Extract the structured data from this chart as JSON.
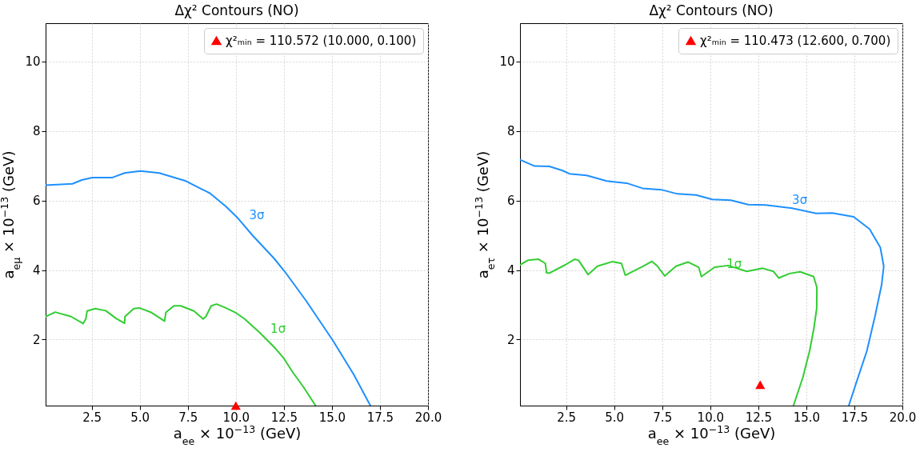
{
  "chart_data": [
    {
      "type": "line",
      "title": "Δχ² Contours (NO)",
      "xlabel": "a$_{ee}$ × 10$^{−13}$ (GeV)",
      "ylabel": "a$_{eμ}$ × 10$^{−13}$ (GeV)",
      "xlim": [
        0.1,
        20
      ],
      "ylim": [
        0.1,
        11.1
      ],
      "xticks": [
        {
          "value": 2.5,
          "label": "2.5"
        },
        {
          "value": 5,
          "label": "5.0"
        },
        {
          "value": 7.5,
          "label": "7.5"
        },
        {
          "value": 10,
          "label": "10.0"
        },
        {
          "value": 12.5,
          "label": "12.5"
        },
        {
          "value": 15,
          "label": "15.0"
        },
        {
          "value": 17.5,
          "label": "17.5"
        },
        {
          "value": 20,
          "label": "20.0"
        }
      ],
      "yticks": [
        2,
        4,
        6,
        8,
        10
      ],
      "grid": true,
      "legend": "top right",
      "series": [
        {
          "name": "3σ",
          "color": "#1e90ff",
          "x": [
            0.1,
            1.5,
            1.98,
            2.54,
            3.58,
            4.21,
            5.04,
            6.01,
            7.4,
            8.65,
            9.48,
            10.11,
            10.88,
            11.98,
            12.54,
            13.65,
            15.04,
            16.15,
            17.0
          ],
          "values": [
            6.44,
            6.48,
            6.59,
            6.66,
            6.66,
            6.79,
            6.85,
            6.79,
            6.56,
            6.21,
            5.83,
            5.49,
            4.99,
            4.34,
            3.96,
            3.12,
            1.98,
            0.98,
            0.1
          ]
        },
        {
          "name": "1σ",
          "color": "#32cd32",
          "x": [
            0.1,
            0.6,
            1.43,
            2.05,
            2.19,
            2.26,
            2.68,
            3.23,
            3.79,
            4.21,
            4.23,
            4.69,
            4.97,
            5.6,
            6.29,
            6.36,
            6.78,
            7.13,
            7.82,
            8.3,
            8.44,
            8.72,
            9.0,
            9.48,
            9.97,
            10.46,
            11.22,
            12.05,
            12.47,
            12.96,
            13.51,
            14.15
          ],
          "values": [
            2.66,
            2.79,
            2.66,
            2.46,
            2.59,
            2.82,
            2.89,
            2.83,
            2.6,
            2.47,
            2.66,
            2.89,
            2.91,
            2.78,
            2.53,
            2.78,
            2.97,
            2.97,
            2.82,
            2.59,
            2.66,
            2.97,
            3.02,
            2.91,
            2.78,
            2.59,
            2.21,
            1.75,
            1.48,
            1.06,
            0.64,
            0.1
          ]
        },
        {
          "type": "scatter",
          "name": "χ²ₘᵢₙ = 110.572 (10.000, 0.100)",
          "color": "#ff0000",
          "marker": "triangle",
          "x": [
            10
          ],
          "values": [
            0.1
          ]
        }
      ]
    },
    {
      "type": "line",
      "title": "Δχ² Contours (NO)",
      "xlabel": "a$_{ee}$ × 10$^{−13}$ (GeV)",
      "ylabel": "a$_{eτ}$ × 10$^{−13}$ (GeV)",
      "xlim": [
        0.1,
        20
      ],
      "ylim": [
        0.1,
        11.1
      ],
      "xticks": [
        {
          "value": 2.5,
          "label": "2.5"
        },
        {
          "value": 5,
          "label": "5.0"
        },
        {
          "value": 7.5,
          "label": "7.5"
        },
        {
          "value": 10,
          "label": "10.0"
        },
        {
          "value": 12.5,
          "label": "12.5"
        },
        {
          "value": 15,
          "label": "15.0"
        },
        {
          "value": 17.5,
          "label": "17.5"
        },
        {
          "value": 20,
          "label": "20.0"
        }
      ],
      "yticks": [
        2,
        4,
        6,
        8,
        10
      ],
      "grid": true,
      "legend": "top right",
      "series": [
        {
          "name": "3σ",
          "color": "#1e90ff",
          "x": [
            0.1,
            0.86,
            1.63,
            2.32,
            2.67,
            3.57,
            4.61,
            5.65,
            6.48,
            7.46,
            8.29,
            9.26,
            10.1,
            11.07,
            11.97,
            12.88,
            14.26,
            15.51,
            16.35,
            17.46,
            18.29,
            18.85,
            19.03,
            18.92,
            18.57,
            18.15,
            17.6,
            17.21
          ],
          "values": [
            7.17,
            6.99,
            6.98,
            6.86,
            6.77,
            6.72,
            6.56,
            6.5,
            6.35,
            6.31,
            6.19,
            6.16,
            6.03,
            6.01,
            5.88,
            5.87,
            5.78,
            5.63,
            5.64,
            5.53,
            5.18,
            4.65,
            4.11,
            3.58,
            2.66,
            1.67,
            0.76,
            0.1
          ]
        },
        {
          "name": "1σ",
          "color": "#32cd32",
          "x": [
            0.1,
            0.51,
            1.07,
            1.42,
            1.48,
            1.63,
            2.46,
            2.94,
            3.15,
            3.64,
            4.13,
            4.89,
            5.38,
            5.58,
            6.48,
            6.97,
            7.25,
            7.63,
            8.22,
            8.85,
            9.4,
            9.54,
            10.23,
            10.93,
            11.9,
            12.73,
            13.29,
            13.57,
            14.13,
            14.68,
            15.38,
            15.55,
            15.54,
            15.38,
            15.17,
            14.82,
            14.33
          ],
          "values": [
            4.15,
            4.28,
            4.31,
            4.19,
            3.92,
            3.91,
            4.15,
            4.31,
            4.28,
            3.87,
            4.11,
            4.24,
            4.19,
            3.85,
            4.1,
            4.25,
            4.11,
            3.83,
            4.11,
            4.23,
            4.08,
            3.81,
            4.08,
            4.13,
            3.96,
            4.05,
            3.96,
            3.77,
            3.9,
            3.95,
            3.81,
            3.5,
            2.89,
            2.28,
            1.67,
            0.91,
            0.1
          ]
        },
        {
          "type": "scatter",
          "name": "χ²ₘᵢₙ = 110.473 (12.600, 0.700)",
          "color": "#ff0000",
          "marker": "triangle",
          "x": [
            12.6
          ],
          "values": [
            0.7
          ]
        }
      ]
    }
  ]
}
